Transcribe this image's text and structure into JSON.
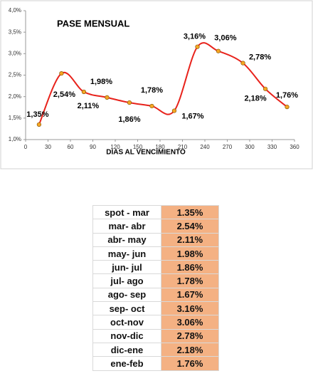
{
  "chart_data": {
    "type": "line",
    "title": "PASE MENSUAL",
    "x_label": "DIAS AL VENCIMIENTO",
    "x": [
      18,
      48,
      78,
      109,
      139,
      169,
      199,
      230,
      258,
      291,
      321,
      350
    ],
    "series": [
      {
        "name": "pase",
        "color": "#e8221b",
        "marker_color": "#f5a623",
        "values": [
          1.35,
          2.54,
          2.11,
          1.98,
          1.86,
          1.78,
          1.67,
          3.16,
          3.06,
          2.78,
          2.18,
          1.76
        ],
        "value_labels": [
          "1,35%",
          "2,54%",
          "2,11%",
          "1,98%",
          "1,86%",
          "1,78%",
          "1,67%",
          "3,16%",
          "3,06%",
          "2,78%",
          "2,18%",
          "1,76%"
        ]
      }
    ],
    "xlim": [
      0,
      360
    ],
    "xticks": [
      0,
      30,
      60,
      90,
      120,
      150,
      180,
      210,
      240,
      270,
      300,
      330,
      360
    ],
    "ylim": [
      1.0,
      4.0
    ],
    "yticks": [
      {
        "value": 1.0,
        "label": "1,0%"
      },
      {
        "value": 1.5,
        "label": "1,5%"
      },
      {
        "value": 2.0,
        "label": "2,0%"
      },
      {
        "value": 2.5,
        "label": "2,5%"
      },
      {
        "value": 3.0,
        "label": "3,0%"
      },
      {
        "value": 3.5,
        "label": "3,5%"
      },
      {
        "value": 4.0,
        "label": "4,0%"
      }
    ],
    "smooth": true
  },
  "table": {
    "rows": [
      [
        "spot - mar",
        "1.35%"
      ],
      [
        "mar- abr",
        "2.54%"
      ],
      [
        "abr- may",
        "2.11%"
      ],
      [
        "may- jun",
        "1.98%"
      ],
      [
        "jun- jul",
        "1.86%"
      ],
      [
        "jul- ago",
        "1.78%"
      ],
      [
        "ago- sep",
        "1.67%"
      ],
      [
        "sep- oct",
        "3.16%"
      ],
      [
        "oct-nov",
        "3.06%"
      ],
      [
        "nov-dic",
        "2.78%"
      ],
      [
        "dic-ene",
        "2.18%"
      ],
      [
        "ene-feb",
        "1.76%"
      ]
    ]
  }
}
